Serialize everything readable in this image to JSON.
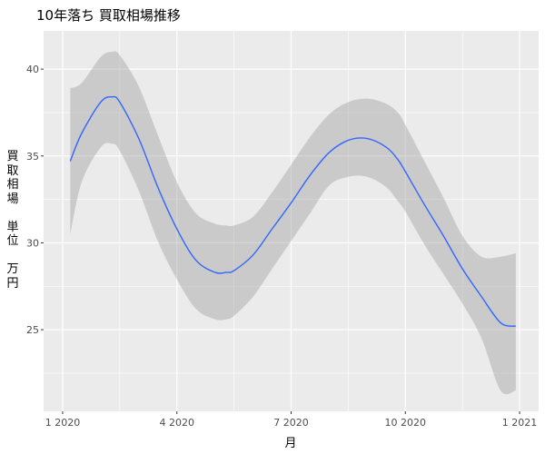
{
  "chart_data": {
    "type": "line",
    "title": "10年落ち 買取相場推移",
    "xlabel": "月",
    "ylabel": "買取相場\n\n単位\n\n万円",
    "x_ticks": [
      {
        "value": 0,
        "label": "1 2020"
      },
      {
        "value": 3,
        "label": "4 2020"
      },
      {
        "value": 6,
        "label": "7 2020"
      },
      {
        "value": 9,
        "label": "10 2020"
      },
      {
        "value": 12,
        "label": "1 2021"
      }
    ],
    "y_ticks": [
      25,
      30,
      35,
      40
    ],
    "xlim": [
      -0.5,
      12.5
    ],
    "ylim": [
      20.3,
      42.2
    ],
    "grid": true,
    "series": [
      {
        "kind": "smooth",
        "color": "#3366FF",
        "x": [
          0.2,
          0.5,
          1,
          1.3,
          1.5,
          2,
          2.5,
          3,
          3.5,
          4,
          4.3,
          4.5,
          5,
          5.5,
          6,
          6.5,
          7,
          7.5,
          8,
          8.5,
          8.8,
          9,
          9.5,
          10,
          10.5,
          11,
          11.5,
          11.9
        ],
        "y": [
          34.7,
          36.3,
          38.1,
          38.4,
          38.1,
          36.0,
          33.2,
          30.8,
          29.0,
          28.3,
          28.3,
          28.4,
          29.3,
          30.8,
          32.3,
          33.9,
          35.2,
          35.9,
          36.0,
          35.5,
          34.8,
          34.1,
          32.2,
          30.4,
          28.5,
          26.9,
          25.4,
          25.2
        ]
      }
    ],
    "band": {
      "color": "#999999",
      "x": [
        0.2,
        0.5,
        1,
        1.3,
        1.5,
        2,
        2.5,
        3,
        3.5,
        4,
        4.3,
        4.5,
        5,
        5.5,
        6,
        6.5,
        7,
        7.5,
        8,
        8.5,
        8.8,
        9,
        9.5,
        10,
        10.5,
        11,
        11.5,
        11.9
      ],
      "upper": [
        38.9,
        39.2,
        40.7,
        41.0,
        40.8,
        39.0,
        36.2,
        33.5,
        31.7,
        31.1,
        31.0,
        31.0,
        31.5,
        32.9,
        34.5,
        36.1,
        37.4,
        38.1,
        38.3,
        38.0,
        37.5,
        36.8,
        34.7,
        32.6,
        30.4,
        29.2,
        29.2,
        29.4
      ],
      "lower": [
        30.5,
        33.5,
        35.5,
        35.7,
        35.3,
        33.0,
        30.1,
        27.9,
        26.2,
        25.6,
        25.6,
        25.8,
        26.9,
        28.5,
        30.1,
        31.7,
        33.3,
        33.8,
        33.8,
        33.2,
        32.4,
        31.8,
        29.9,
        28.2,
        26.5,
        24.5,
        21.5,
        21.5
      ]
    }
  }
}
